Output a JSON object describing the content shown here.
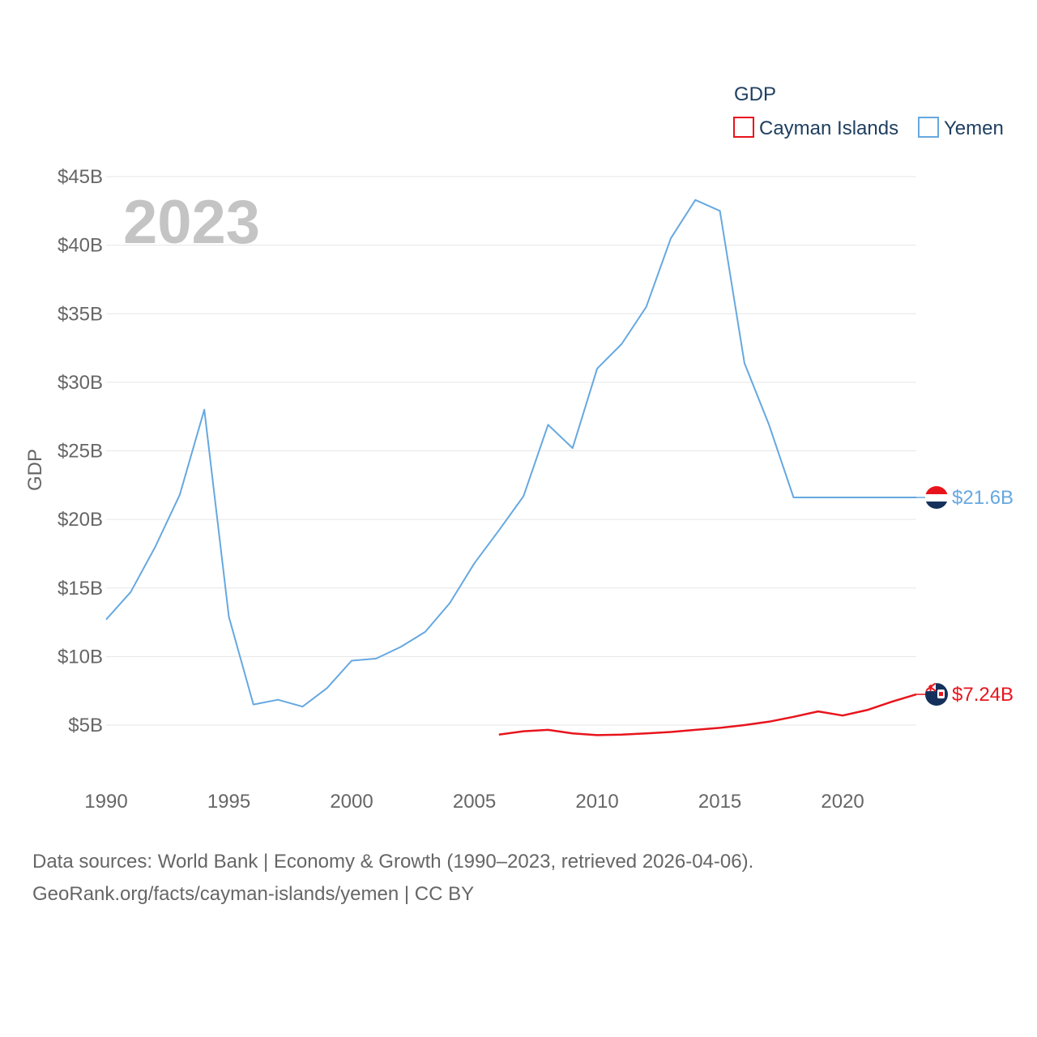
{
  "chart_data": {
    "type": "line",
    "title": "",
    "ylabel": "GDP",
    "xlabel": "",
    "watermark_year": "2023",
    "legend_title": "GDP",
    "xlim": [
      1990,
      2023
    ],
    "ylim": [
      0,
      45
    ],
    "y_ticks": [
      {
        "value": 5,
        "label": "$5B"
      },
      {
        "value": 10,
        "label": "$10B"
      },
      {
        "value": 15,
        "label": "$15B"
      },
      {
        "value": 20,
        "label": "$20B"
      },
      {
        "value": 25,
        "label": "$25B"
      },
      {
        "value": 30,
        "label": "$30B"
      },
      {
        "value": 35,
        "label": "$35B"
      },
      {
        "value": 40,
        "label": "$40B"
      },
      {
        "value": 45,
        "label": "$45B"
      }
    ],
    "x_ticks": [
      {
        "value": 1990,
        "label": "1990"
      },
      {
        "value": 1995,
        "label": "1995"
      },
      {
        "value": 2000,
        "label": "2000"
      },
      {
        "value": 2005,
        "label": "2005"
      },
      {
        "value": 2010,
        "label": "2010"
      },
      {
        "value": 2015,
        "label": "2015"
      },
      {
        "value": 2020,
        "label": "2020"
      }
    ],
    "series": [
      {
        "name": "Cayman Islands",
        "color": "#e8141c",
        "end_label": "$7.24B",
        "points": [
          [
            2006,
            4.3
          ],
          [
            2007,
            4.55
          ],
          [
            2008,
            4.65
          ],
          [
            2009,
            4.4
          ],
          [
            2010,
            4.27
          ],
          [
            2011,
            4.3
          ],
          [
            2012,
            4.4
          ],
          [
            2013,
            4.5
          ],
          [
            2014,
            4.65
          ],
          [
            2015,
            4.8
          ],
          [
            2016,
            5.0
          ],
          [
            2017,
            5.25
          ],
          [
            2018,
            5.6
          ],
          [
            2019,
            6.0
          ],
          [
            2020,
            5.7
          ],
          [
            2021,
            6.1
          ],
          [
            2022,
            6.7
          ],
          [
            2023,
            7.24
          ]
        ]
      },
      {
        "name": "Yemen",
        "color": "#66a8e0",
        "end_label": "$21.6B",
        "points": [
          [
            1990,
            12.7
          ],
          [
            1991,
            14.7
          ],
          [
            1992,
            18.0
          ],
          [
            1993,
            21.8
          ],
          [
            1994,
            28.0
          ],
          [
            1995,
            12.9
          ],
          [
            1996,
            6.5
          ],
          [
            1997,
            6.85
          ],
          [
            1998,
            6.35
          ],
          [
            1999,
            7.7
          ],
          [
            2000,
            9.7
          ],
          [
            2001,
            9.85
          ],
          [
            2002,
            10.7
          ],
          [
            2003,
            11.8
          ],
          [
            2004,
            13.9
          ],
          [
            2005,
            16.8
          ],
          [
            2006,
            19.2
          ],
          [
            2007,
            21.7
          ],
          [
            2008,
            26.9
          ],
          [
            2009,
            25.2
          ],
          [
            2010,
            31.0
          ],
          [
            2011,
            32.8
          ],
          [
            2012,
            35.5
          ],
          [
            2013,
            40.5
          ],
          [
            2014,
            43.3
          ],
          [
            2015,
            42.5
          ],
          [
            2016,
            31.4
          ],
          [
            2017,
            26.9
          ],
          [
            2018,
            21.6
          ],
          [
            2019,
            21.6
          ],
          [
            2020,
            21.6
          ],
          [
            2021,
            21.6
          ],
          [
            2022,
            21.6
          ],
          [
            2023,
            21.6
          ]
        ]
      }
    ]
  },
  "footer": {
    "line1": "Data sources: World Bank | Economy & Growth (1990–2023, retrieved 2026-04-06).",
    "line2": "GeoRank.org/facts/cayman-islands/yemen | CC BY"
  },
  "colors": {
    "yemen_flag_red": "#e8141c",
    "yemen_flag_white": "#ffffff",
    "yemen_flag_dark": "#15305a",
    "cayman_flag_blue": "#15305a"
  }
}
